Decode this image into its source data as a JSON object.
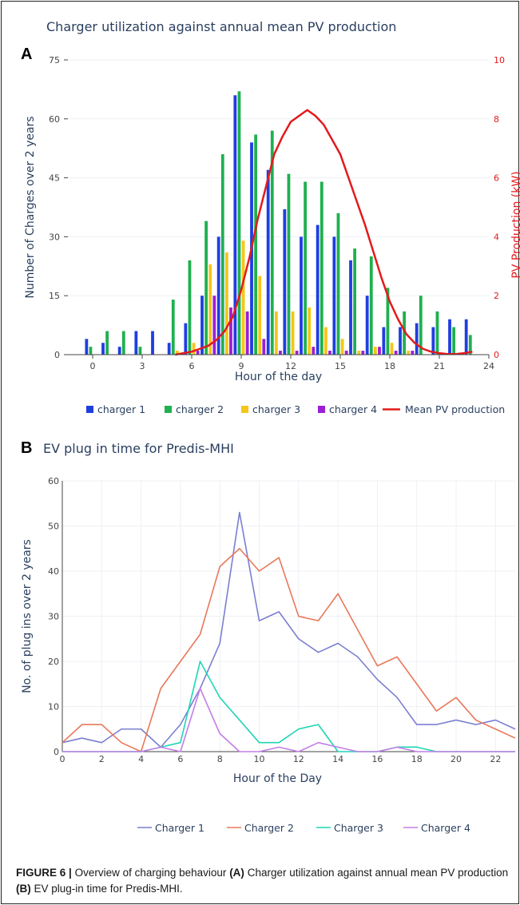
{
  "colors": {
    "charger1_bar": "#1f3ee0",
    "charger2_bar": "#1fb050",
    "charger3_bar": "#f5c518",
    "charger4_bar": "#9b1fd4",
    "pv_line": "#e31a1c",
    "charger1_line": "#7b7fd0",
    "charger2_line": "#e8785a",
    "charger3_line": "#1ed6b4",
    "charger4_line": "#c37ee6"
  },
  "panelA": {
    "letter": "A",
    "title": "Charger utilization against annual mean PV production"
  },
  "panelB": {
    "letter": "B",
    "title": "EV plug in time for Predis-MHI"
  },
  "caption": {
    "label": "FIGURE 6 |",
    "lead": "Overview of charging behaviour",
    "partA": "(A)",
    "textA": "Charger utilization against annual mean PV production",
    "partB": "(B)",
    "textB": "EV plug-in time for Predis-MHI."
  },
  "chart_data": [
    {
      "type": "bar",
      "title": "Charger utilization against annual mean PV production",
      "xlabel": "Hour of the day",
      "ylabel": "Number of Charges over 2 years",
      "y2label": "PV Production (kW)",
      "xlim": [
        -1.5,
        24
      ],
      "ylim": [
        0,
        75
      ],
      "y2lim": [
        0,
        10
      ],
      "xticks": [
        0,
        3,
        6,
        9,
        12,
        15,
        18,
        21,
        24
      ],
      "yticks": [
        0,
        15,
        30,
        45,
        60,
        75
      ],
      "y2ticks": [
        0,
        2,
        4,
        6,
        8,
        10
      ],
      "legend_position": "bottom",
      "categories": [
        0,
        1,
        2,
        3,
        4,
        5,
        6,
        7,
        8,
        9,
        10,
        11,
        12,
        13,
        14,
        15,
        16,
        17,
        18,
        19,
        20,
        21,
        22,
        23
      ],
      "series": [
        {
          "name": "charger 1",
          "kind": "bar",
          "axis": "y",
          "values": [
            4,
            3,
            2,
            6,
            6,
            3,
            8,
            15,
            30,
            66,
            54,
            47,
            37,
            30,
            33,
            30,
            24,
            15,
            7,
            7,
            8,
            7,
            9,
            9
          ]
        },
        {
          "name": "charger 2",
          "kind": "bar",
          "axis": "y",
          "values": [
            2,
            6,
            6,
            2,
            0,
            14,
            24,
            34,
            51,
            67,
            56,
            57,
            46,
            44,
            44,
            36,
            27,
            25,
            17,
            11,
            15,
            11,
            7,
            5
          ]
        },
        {
          "name": "charger 3",
          "kind": "bar",
          "axis": "y",
          "values": [
            0,
            0,
            0,
            0,
            0,
            1,
            3,
            23,
            26,
            29,
            20,
            11,
            11,
            12,
            7,
            4,
            1,
            2,
            3,
            1,
            0,
            0,
            0,
            0
          ]
        },
        {
          "name": "charger 4",
          "kind": "bar",
          "axis": "y",
          "values": [
            0,
            0,
            0,
            0,
            0,
            0,
            1,
            15,
            12,
            11,
            4,
            1,
            1,
            2,
            1,
            1,
            1,
            2,
            1,
            1,
            0,
            0,
            0,
            0
          ]
        },
        {
          "name": "Mean PV production",
          "kind": "line",
          "axis": "y2",
          "x": [
            5,
            5.5,
            6,
            6.5,
            7,
            7.5,
            8,
            8.5,
            9,
            9.5,
            10,
            10.5,
            11,
            11.5,
            12,
            12.5,
            13,
            13.5,
            14,
            14.5,
            15,
            15.5,
            16,
            16.5,
            17,
            17.5,
            18,
            18.5,
            19,
            19.5,
            20,
            20.5,
            21,
            21.5,
            22,
            22.5,
            23
          ],
          "values": [
            0,
            0.05,
            0.1,
            0.2,
            0.3,
            0.5,
            0.8,
            1.3,
            2.2,
            3.3,
            4.6,
            5.7,
            6.8,
            7.4,
            7.9,
            8.1,
            8.3,
            8.1,
            7.8,
            7.3,
            6.8,
            6.0,
            5.2,
            4.4,
            3.5,
            2.6,
            1.8,
            1.2,
            0.7,
            0.4,
            0.2,
            0.1,
            0.05,
            0.02,
            0.02,
            0.05,
            0.1
          ]
        }
      ]
    },
    {
      "type": "line",
      "title": "EV plug in time for Predis-MHI",
      "xlabel": "Hour of the Day",
      "ylabel": "No. of plug ins over 2 years",
      "xlim": [
        0,
        23
      ],
      "ylim": [
        0,
        60
      ],
      "xticks": [
        0,
        2,
        4,
        6,
        8,
        10,
        12,
        14,
        16,
        18,
        20,
        22
      ],
      "yticks": [
        0,
        10,
        20,
        30,
        40,
        50,
        60
      ],
      "legend_position": "bottom",
      "x": [
        0,
        1,
        2,
        3,
        4,
        5,
        6,
        7,
        8,
        9,
        10,
        11,
        12,
        13,
        14,
        15,
        16,
        17,
        18,
        19,
        20,
        21,
        22,
        23
      ],
      "series": [
        {
          "name": "Charger 1",
          "values": [
            2,
            3,
            2,
            5,
            5,
            1,
            6,
            14,
            24,
            53,
            29,
            31,
            25,
            22,
            24,
            21,
            16,
            12,
            6,
            6,
            7,
            6,
            7,
            5
          ]
        },
        {
          "name": "Charger 2",
          "values": [
            2,
            6,
            6,
            2,
            0,
            14,
            20,
            26,
            41,
            45,
            40,
            43,
            30,
            29,
            35,
            27,
            19,
            21,
            15,
            9,
            12,
            7,
            5,
            3
          ]
        },
        {
          "name": "Charger 3",
          "values": [
            0,
            0,
            0,
            0,
            0,
            1,
            2,
            20,
            12,
            7,
            2,
            2,
            5,
            6,
            0,
            0,
            0,
            1,
            1,
            0,
            0,
            0,
            0,
            0
          ]
        },
        {
          "name": "Charger 4",
          "values": [
            0,
            0,
            0,
            0,
            0,
            1,
            0,
            14,
            4,
            0,
            0,
            1,
            0,
            2,
            1,
            0,
            0,
            1,
            0,
            0,
            0,
            0,
            0,
            0
          ]
        }
      ]
    }
  ]
}
